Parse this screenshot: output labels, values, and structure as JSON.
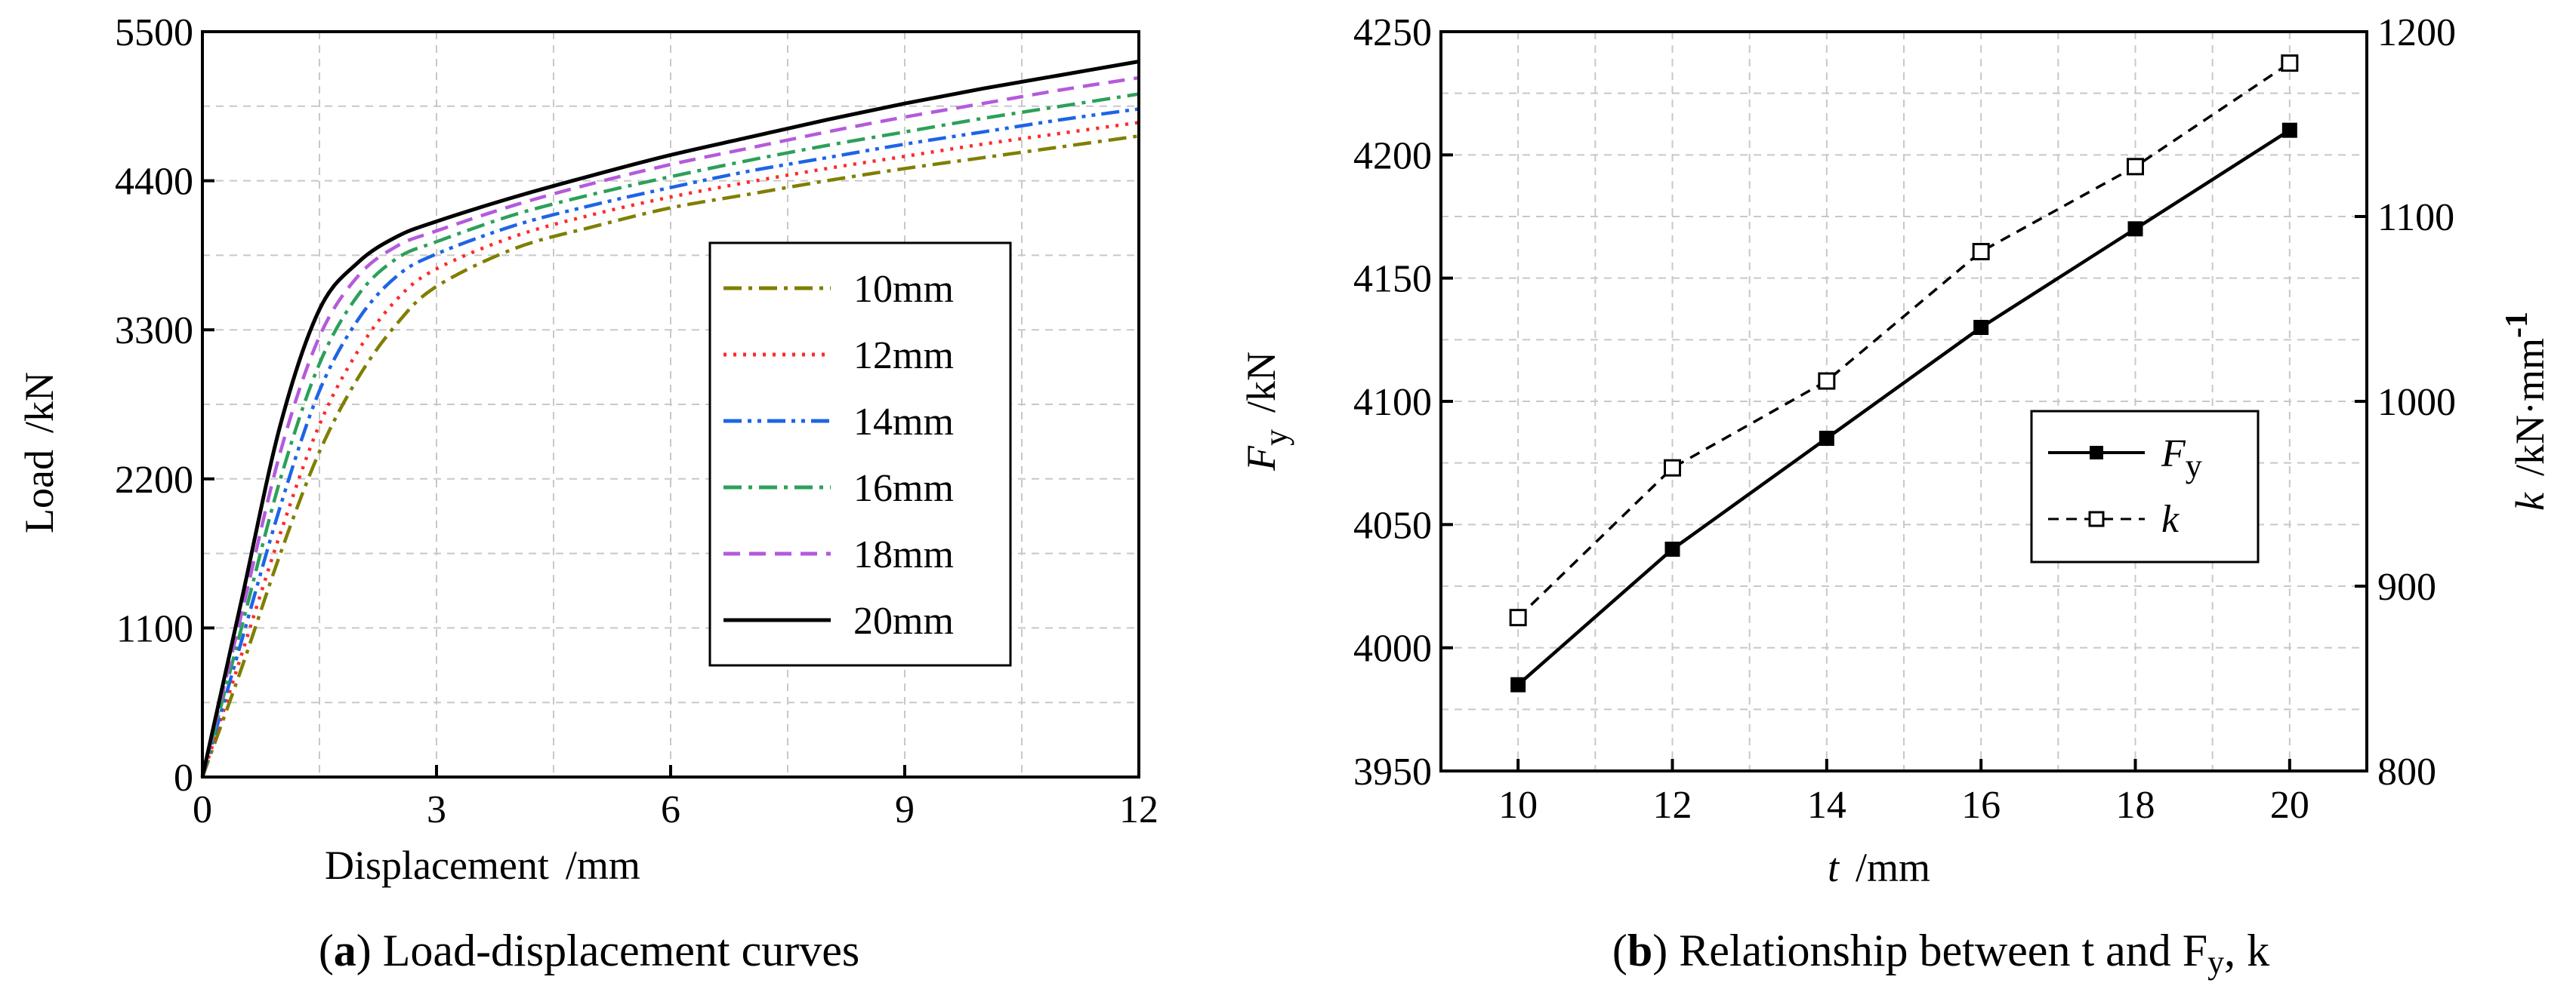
{
  "chart_data": [
    {
      "type": "line",
      "panel": "a",
      "caption_tag": "a",
      "caption": "Load-displacement curves",
      "xlabel": "Displacement",
      "xlabel_unit": "/mm",
      "ylabel": "Load",
      "ylabel_unit": "/kN",
      "xlim": [
        0,
        12
      ],
      "ylim": [
        0,
        5500
      ],
      "xticks": [
        0,
        3,
        6,
        9,
        12
      ],
      "yticks": [
        0,
        1100,
        2200,
        3300,
        4400,
        5500
      ],
      "grid": true,
      "legend_position": "center-right",
      "series": [
        {
          "name": "10mm",
          "color": "#7f7f00",
          "dash": "dashdot",
          "points": [
            [
              0,
              0
            ],
            [
              0.5,
              800
            ],
            [
              1,
              1650
            ],
            [
              1.5,
              2400
            ],
            [
              2,
              2950
            ],
            [
              2.5,
              3350
            ],
            [
              3,
              3620
            ],
            [
              4,
              3900
            ],
            [
              5,
              4060
            ],
            [
              6,
              4200
            ],
            [
              7,
              4300
            ],
            [
              8,
              4400
            ],
            [
              9,
              4490
            ],
            [
              10,
              4570
            ],
            [
              11,
              4650
            ],
            [
              12,
              4730
            ]
          ]
        },
        {
          "name": "12mm",
          "color": "#ff2a2a",
          "dash": "dotted",
          "points": [
            [
              0,
              0
            ],
            [
              0.5,
              900
            ],
            [
              1,
              1800
            ],
            [
              1.5,
              2600
            ],
            [
              2,
              3150
            ],
            [
              2.5,
              3530
            ],
            [
              3,
              3750
            ],
            [
              4,
              3990
            ],
            [
              5,
              4150
            ],
            [
              6,
              4280
            ],
            [
              7,
              4390
            ],
            [
              8,
              4490
            ],
            [
              9,
              4580
            ],
            [
              10,
              4670
            ],
            [
              11,
              4750
            ],
            [
              12,
              4830
            ]
          ]
        },
        {
          "name": "14mm",
          "color": "#1e64e6",
          "dash": "dashdotdot",
          "points": [
            [
              0,
              0
            ],
            [
              0.5,
              1000
            ],
            [
              1,
              2000
            ],
            [
              1.5,
              2850
            ],
            [
              2,
              3380
            ],
            [
              2.5,
              3700
            ],
            [
              3,
              3860
            ],
            [
              4,
              4070
            ],
            [
              5,
              4220
            ],
            [
              6,
              4350
            ],
            [
              7,
              4470
            ],
            [
              8,
              4570
            ],
            [
              9,
              4670
            ],
            [
              10,
              4760
            ],
            [
              11,
              4850
            ],
            [
              12,
              4930
            ]
          ]
        },
        {
          "name": "16mm",
          "color": "#2ca05a",
          "dash": "dashdot",
          "points": [
            [
              0,
              0
            ],
            [
              0.5,
              1100
            ],
            [
              1,
              2200
            ],
            [
              1.5,
              3050
            ],
            [
              2,
              3560
            ],
            [
              2.5,
              3830
            ],
            [
              3,
              3950
            ],
            [
              4,
              4150
            ],
            [
              5,
              4300
            ],
            [
              6,
              4430
            ],
            [
              7,
              4550
            ],
            [
              8,
              4660
            ],
            [
              9,
              4760
            ],
            [
              10,
              4860
            ],
            [
              11,
              4950
            ],
            [
              12,
              5040
            ]
          ]
        },
        {
          "name": "18mm",
          "color": "#b45adc",
          "dash": "dashed",
          "points": [
            [
              0,
              0
            ],
            [
              0.5,
              1200
            ],
            [
              1,
              2400
            ],
            [
              1.5,
              3250
            ],
            [
              2,
              3700
            ],
            [
              2.5,
              3920
            ],
            [
              3,
              4030
            ],
            [
              4,
              4220
            ],
            [
              5,
              4380
            ],
            [
              6,
              4520
            ],
            [
              7,
              4640
            ],
            [
              8,
              4760
            ],
            [
              9,
              4870
            ],
            [
              10,
              4970
            ],
            [
              11,
              5070
            ],
            [
              12,
              5160
            ]
          ]
        },
        {
          "name": "20mm",
          "color": "#000000",
          "dash": "solid",
          "points": [
            [
              0,
              0
            ],
            [
              0.5,
              1300
            ],
            [
              1,
              2600
            ],
            [
              1.5,
              3450
            ],
            [
              2,
              3800
            ],
            [
              2.5,
              3990
            ],
            [
              3,
              4100
            ],
            [
              4,
              4280
            ],
            [
              5,
              4440
            ],
            [
              6,
              4590
            ],
            [
              7,
              4720
            ],
            [
              8,
              4850
            ],
            [
              9,
              4970
            ],
            [
              10,
              5080
            ],
            [
              11,
              5180
            ],
            [
              12,
              5280
            ]
          ]
        }
      ]
    },
    {
      "type": "line",
      "panel": "b",
      "caption_tag": "b",
      "caption": "Relationship between t and F",
      "caption_sub": "y",
      "caption_tail": ", k",
      "x": [
        10,
        12,
        14,
        16,
        18,
        20
      ],
      "xlabel": "t",
      "xlabel_unit": "/mm",
      "xlim": [
        9,
        21
      ],
      "xticks": [
        10,
        12,
        14,
        16,
        18,
        20
      ],
      "ylabel_left": "F",
      "ylabel_left_sub": "y",
      "ylabel_left_unit": "/kN",
      "ylim_left": [
        3950,
        4250
      ],
      "yticks_left": [
        3950,
        4000,
        4050,
        4100,
        4150,
        4200,
        4250
      ],
      "ylabel_right": "k",
      "ylabel_right_unit": "/kN·mm",
      "ylabel_right_sup": "-1",
      "ylim_right": [
        800,
        1200
      ],
      "yticks_right": [
        800,
        900,
        1000,
        1100,
        1200
      ],
      "grid": true,
      "legend_position": "center-right",
      "series": [
        {
          "name": "F",
          "name_sub": "y",
          "axis": "left",
          "style": "solid",
          "marker": "filled-square",
          "values": [
            3985,
            4040,
            4085,
            4130,
            4170,
            4210
          ]
        },
        {
          "name": "k",
          "axis": "right",
          "style": "dashed",
          "marker": "open-square",
          "values": [
            883,
            964,
            1011,
            1081,
            1127,
            1183
          ]
        }
      ]
    }
  ]
}
